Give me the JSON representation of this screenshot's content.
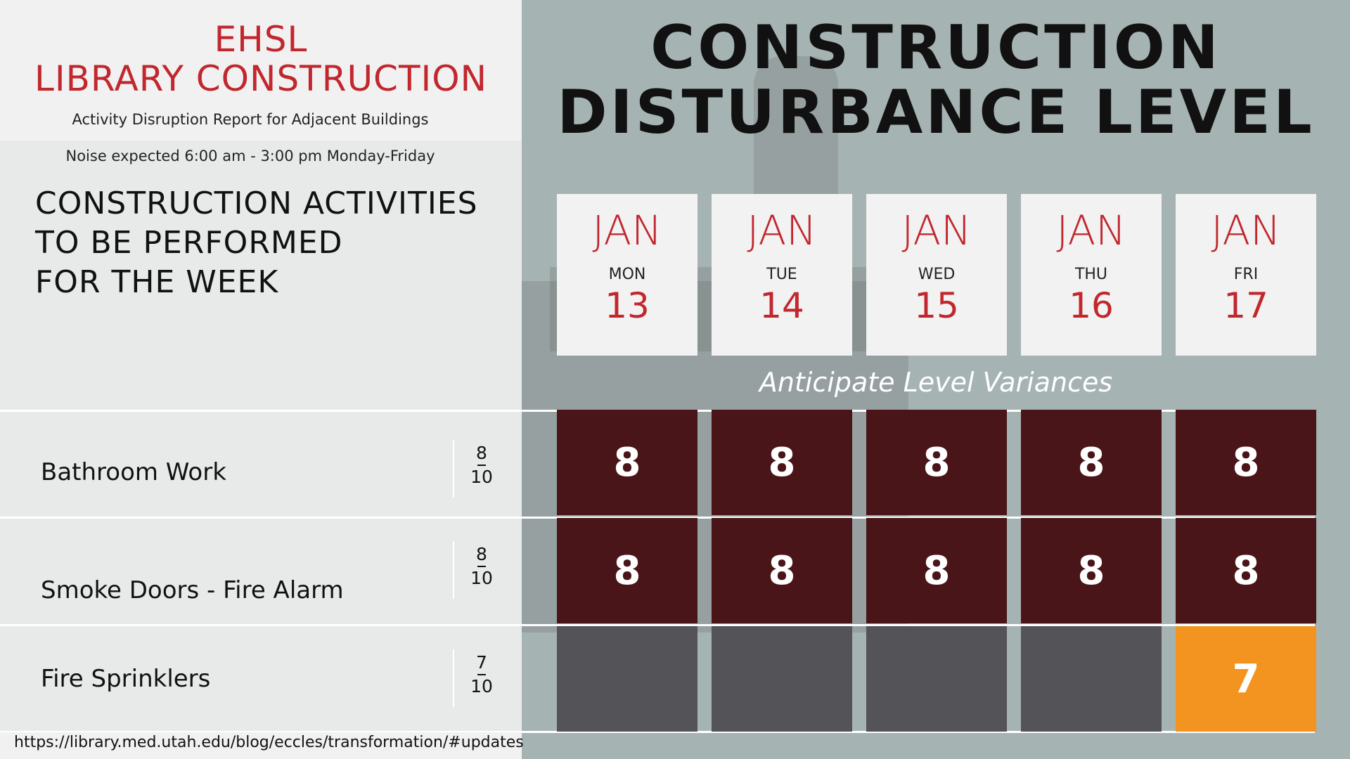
{
  "header": {
    "org_line1": "EHSL",
    "org_line2": "LIBRARY CONSTRUCTION",
    "subtitle": "Activity Disruption Report for Adjacent Buildings",
    "noise_note": "Noise expected 6:00 am - 3:00 pm Monday-Friday"
  },
  "activities_heading": {
    "line1": "CONSTRUCTION ACTIVITIES",
    "line2": "TO BE PERFORMED",
    "line3": "FOR THE WEEK"
  },
  "main_title": {
    "line1": "CONSTRUCTION",
    "line2": "DISTURBANCE LEVEL"
  },
  "days": [
    {
      "month": "JAN",
      "dow": "MON",
      "date": "13"
    },
    {
      "month": "JAN",
      "dow": "TUE",
      "date": "14"
    },
    {
      "month": "JAN",
      "dow": "WED",
      "date": "15"
    },
    {
      "month": "JAN",
      "dow": "THU",
      "date": "16"
    },
    {
      "month": "JAN",
      "dow": "FRI",
      "date": "17"
    }
  ],
  "variances_note": "Anticipate Level Variances",
  "activities": [
    {
      "name": "Bathroom Work",
      "max_level": "8",
      "scale": "10",
      "levels": [
        "8",
        "8",
        "8",
        "8",
        "8"
      ]
    },
    {
      "name": "Smoke Doors - Fire Alarm",
      "max_level": "8",
      "scale": "10",
      "levels": [
        "8",
        "8",
        "8",
        "8",
        "8"
      ]
    },
    {
      "name": "Fire Sprinklers",
      "max_level": "7",
      "scale": "10",
      "levels": [
        "",
        "",
        "",
        "",
        "7"
      ]
    }
  ],
  "colors": {
    "brand_red": "#c1272d",
    "level_high": "#4a1518",
    "level_none": "#545458",
    "level_mid": "#f2941f"
  },
  "footer_url": "https://library.med.utah.edu/blog/eccles/transformation/#updates"
}
